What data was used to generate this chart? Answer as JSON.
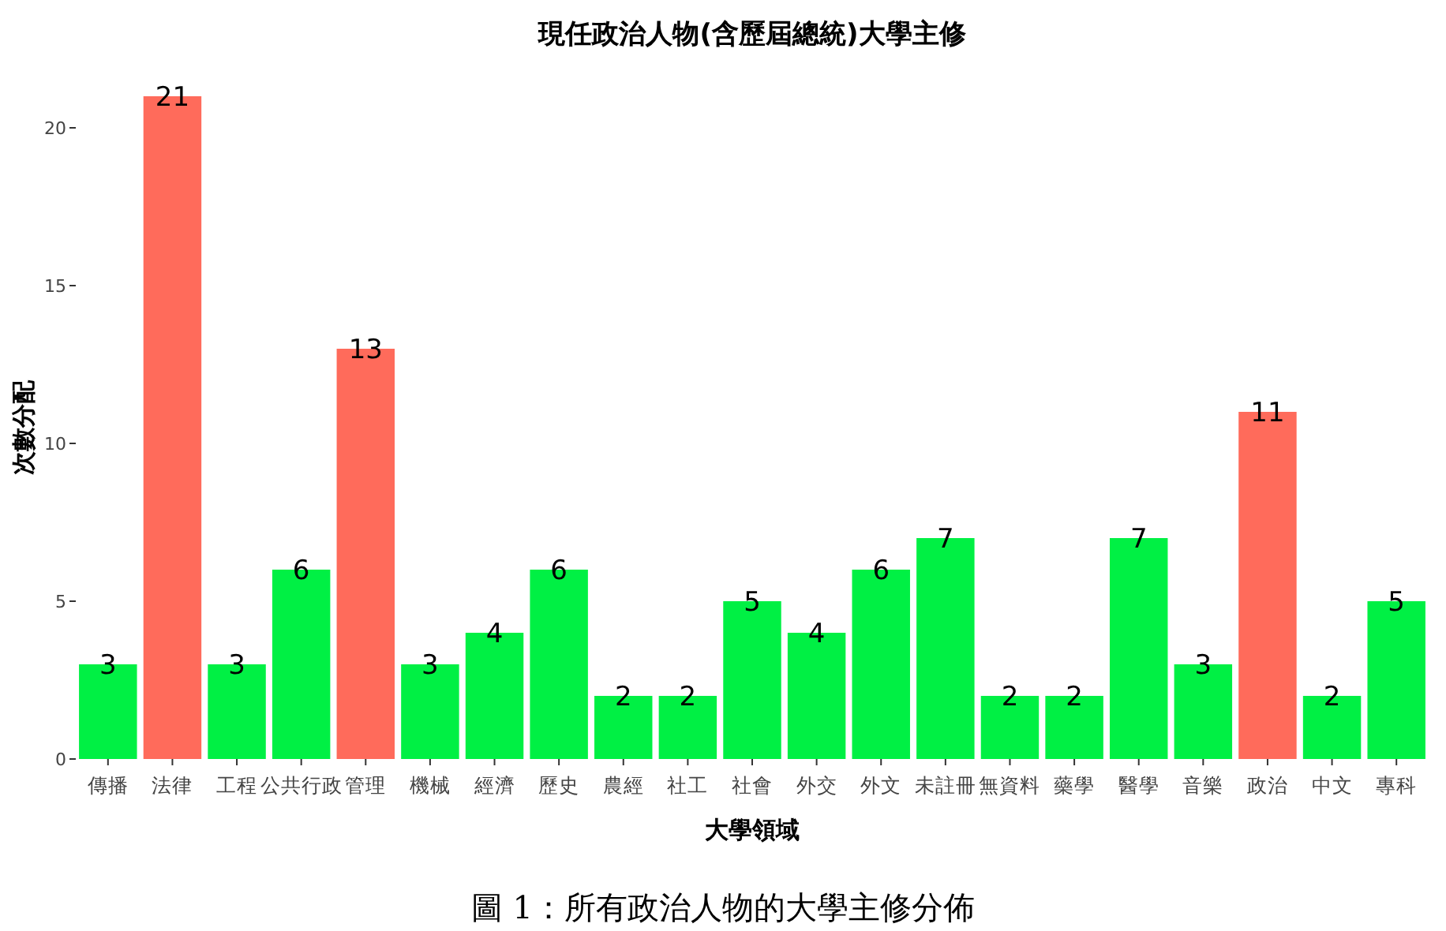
{
  "chart_data": {
    "type": "bar",
    "title": "現任政治人物(含歷屆總統)大學主修",
    "xlabel": "大學領域",
    "ylabel": "次數分配",
    "categories": [
      "傳播",
      "法律",
      "工程",
      "公共行政",
      "管理",
      "機械",
      "經濟",
      "歷史",
      "農經",
      "社工",
      "社會",
      "外交",
      "外文",
      "未註冊",
      "無資料",
      "藥學",
      "醫學",
      "音樂",
      "政治",
      "中文",
      "專科"
    ],
    "values": [
      3,
      21,
      3,
      6,
      13,
      3,
      4,
      6,
      2,
      2,
      5,
      4,
      6,
      7,
      2,
      2,
      7,
      3,
      11,
      2,
      5
    ],
    "colors": [
      "#00f044",
      "#ff6b5b",
      "#00f044",
      "#00f044",
      "#ff6b5b",
      "#00f044",
      "#00f044",
      "#00f044",
      "#00f044",
      "#00f044",
      "#00f044",
      "#00f044",
      "#00f044",
      "#00f044",
      "#00f044",
      "#00f044",
      "#00f044",
      "#00f044",
      "#ff6b5b",
      "#00f044",
      "#00f044"
    ],
    "ylim": [
      0,
      21
    ],
    "yticks": [
      0,
      5,
      10,
      15,
      20
    ],
    "grid": false,
    "data_labels": true,
    "annotations": [
      "圖 1：所有政治人物的大學主修分佈"
    ]
  }
}
